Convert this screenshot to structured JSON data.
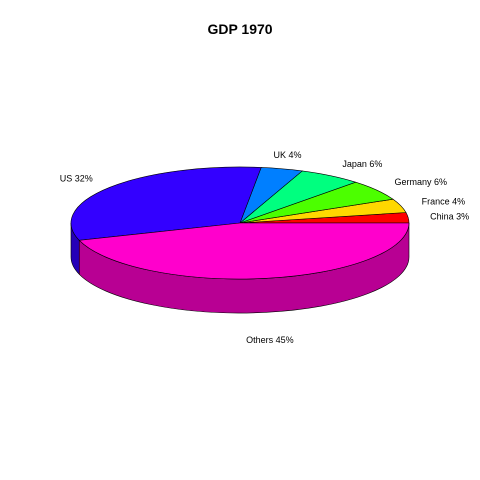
{
  "chart_data": {
    "type": "pie",
    "style": "3d-exploded-none",
    "title": "GDP 1970",
    "slices": [
      {
        "label": "China 3%",
        "value": 3,
        "color": "#ff0000"
      },
      {
        "label": "France 4%",
        "value": 4,
        "color": "#ffd800"
      },
      {
        "label": "Germany 6%",
        "value": 6,
        "color": "#4cff00"
      },
      {
        "label": "Japan 6%",
        "value": 6,
        "color": "#00ff7f"
      },
      {
        "label": "UK 4%",
        "value": 4,
        "color": "#007fff"
      },
      {
        "label": "US 32%",
        "value": 32,
        "color": "#3300ff"
      },
      {
        "label": "Others 45%",
        "value": 45,
        "color": "#ff00cc"
      }
    ]
  }
}
